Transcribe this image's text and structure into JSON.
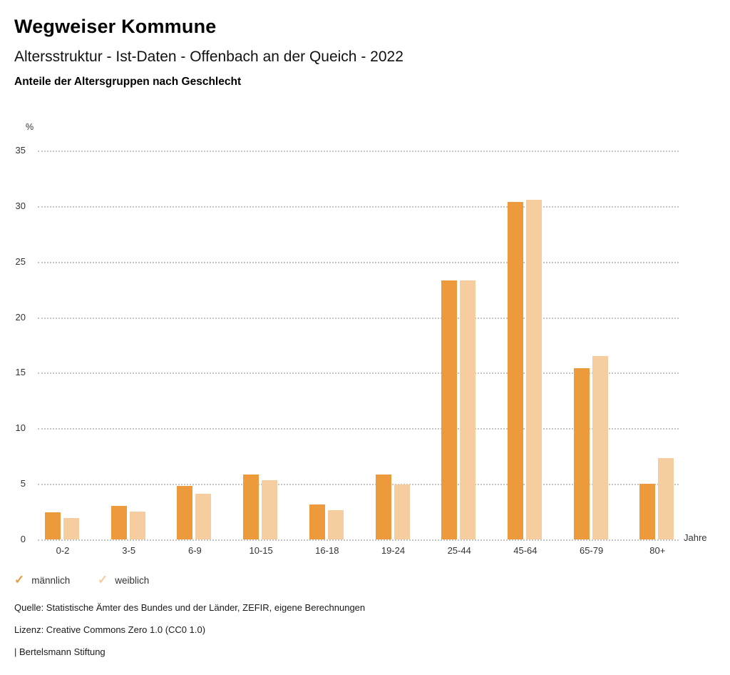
{
  "header": {
    "title": "Wegweiser Kommune",
    "subtitle": "Altersstruktur - Ist-Daten - Offenbach an der Queich - 2022",
    "chart_heading": "Anteile der Altersgruppen nach Geschlecht"
  },
  "chart_data": {
    "type": "bar",
    "title": "Anteile der Altersgruppen nach Geschlecht",
    "y_unit_label": "%",
    "x_unit_label": "Jahre",
    "categories": [
      "0-2",
      "3-5",
      "6-9",
      "10-15",
      "16-18",
      "19-24",
      "25-44",
      "45-64",
      "65-79",
      "80+"
    ],
    "series": [
      {
        "name": "männlich",
        "color": "#EC9A3B",
        "values": [
          2.4,
          3.0,
          4.8,
          5.8,
          3.1,
          5.8,
          23.3,
          30.4,
          15.4,
          5.0
        ]
      },
      {
        "name": "weiblich",
        "color": "#F5CD9E",
        "values": [
          1.9,
          2.5,
          4.1,
          5.3,
          2.6,
          4.9,
          23.3,
          30.6,
          16.5,
          7.3
        ]
      }
    ],
    "ylim": [
      0,
      35
    ],
    "yticks": [
      0,
      5,
      10,
      15,
      20,
      25,
      30,
      35
    ],
    "grid": "horizontal-dotted",
    "legend_position": "bottom-left"
  },
  "legend": {
    "items": [
      {
        "label": "männlich",
        "icon": "check-icon",
        "color": "#EC9A3B"
      },
      {
        "label": "weiblich",
        "icon": "check-icon",
        "color": "#F5CD9E"
      }
    ]
  },
  "footer": {
    "source": "Quelle: Statistische Ämter des Bundes und der Länder, ZEFIR, eigene Berechnungen",
    "license": "Lizenz: Creative Commons Zero 1.0 (CC0 1.0)",
    "attribution": "| Bertelsmann Stiftung"
  }
}
